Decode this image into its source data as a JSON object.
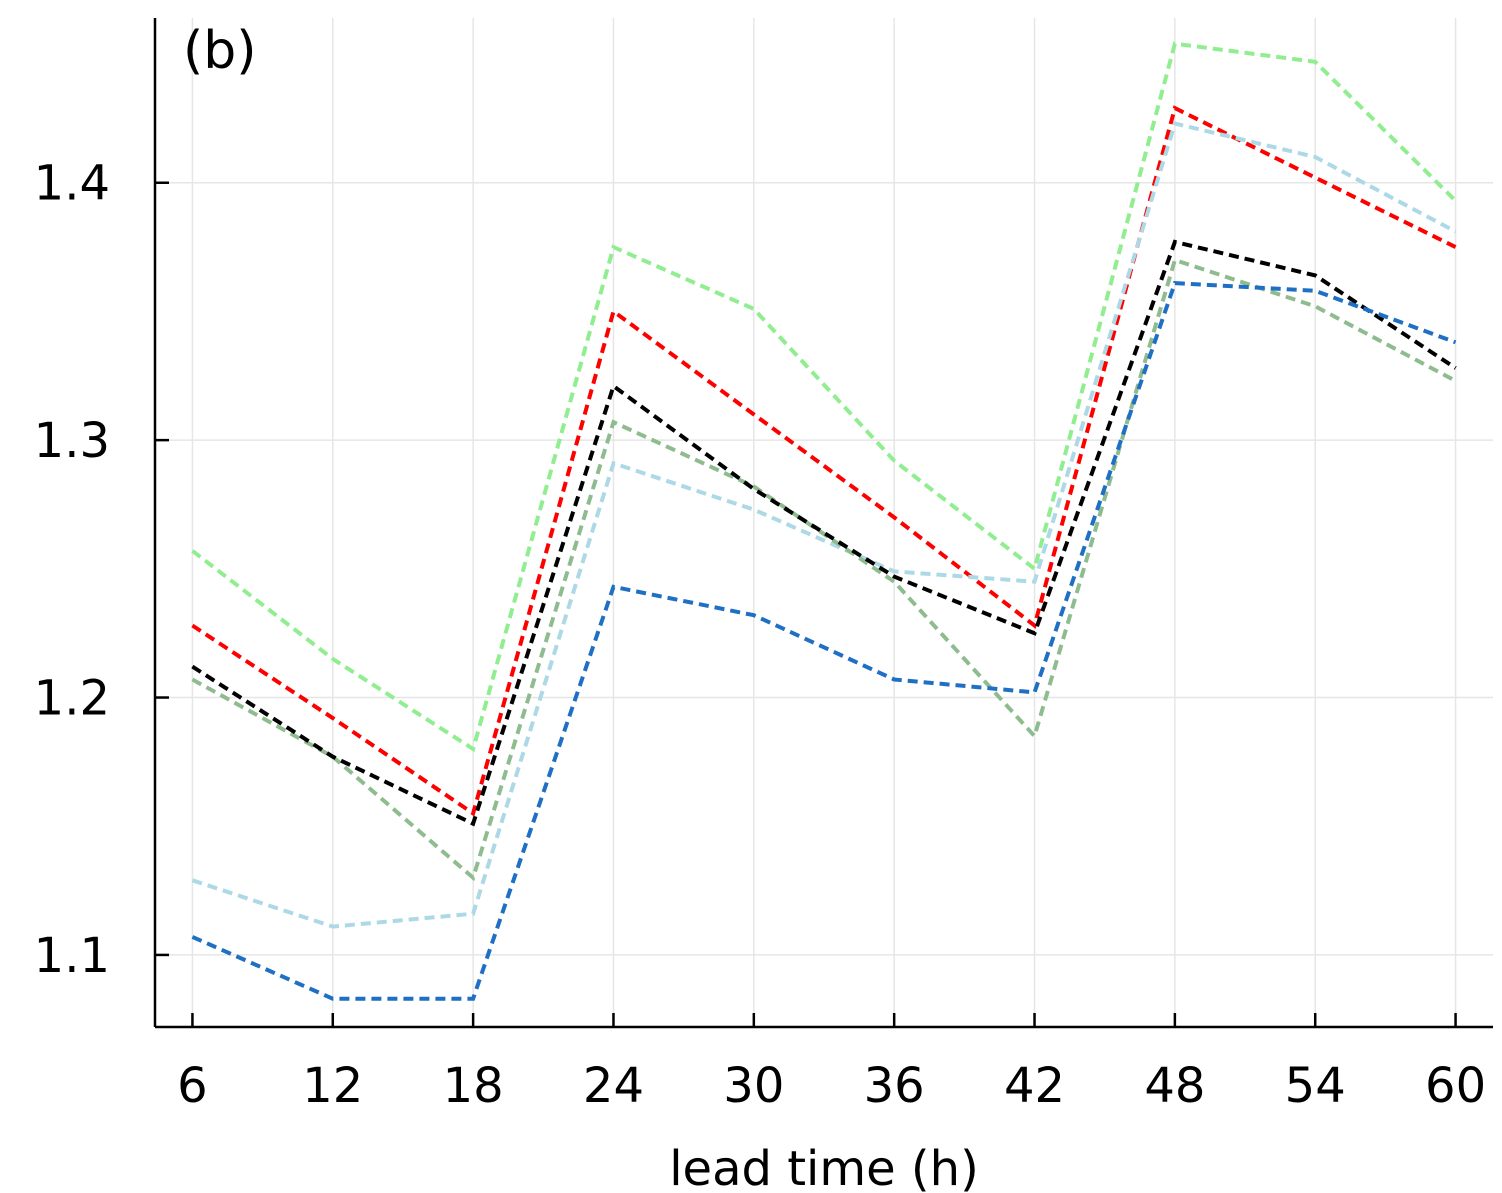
{
  "chart_data": {
    "type": "line",
    "panel_label": "(b)",
    "xlabel": "lead time (h)",
    "ylabel": "",
    "x": [
      6,
      12,
      18,
      24,
      30,
      36,
      42,
      48,
      54,
      60
    ],
    "xticks": [
      6,
      12,
      18,
      24,
      30,
      36,
      42,
      48,
      54,
      60
    ],
    "yticks": [
      1.1,
      1.2,
      1.3,
      1.4
    ],
    "ylim": [
      1.072,
      1.464
    ],
    "xlim": [
      4.4,
      61.6
    ],
    "grid": true,
    "legend": "none",
    "series": [
      {
        "color": "#90ee90",
        "values": [
          1.257,
          1.215,
          1.18,
          1.375,
          1.351,
          1.292,
          1.25,
          1.454,
          1.447,
          1.393
        ]
      },
      {
        "color": "#ff0000",
        "values": [
          1.228,
          1.192,
          1.155,
          1.35,
          1.31,
          1.27,
          1.228,
          1.429,
          1.402,
          1.375
        ]
      },
      {
        "color": "#add8e6",
        "values": [
          1.129,
          1.111,
          1.116,
          1.291,
          1.273,
          1.249,
          1.245,
          1.423,
          1.41,
          1.381
        ]
      },
      {
        "color": "#8fbc8f",
        "values": [
          1.207,
          1.177,
          1.13,
          1.307,
          1.282,
          1.245,
          1.185,
          1.37,
          1.352,
          1.323
        ]
      },
      {
        "color": "#000000",
        "values": [
          1.212,
          1.177,
          1.151,
          1.321,
          1.281,
          1.247,
          1.225,
          1.377,
          1.364,
          1.328
        ]
      },
      {
        "color": "#1f6fc4",
        "values": [
          1.107,
          1.083,
          1.083,
          1.243,
          1.232,
          1.207,
          1.202,
          1.361,
          1.358,
          1.338
        ]
      }
    ]
  }
}
